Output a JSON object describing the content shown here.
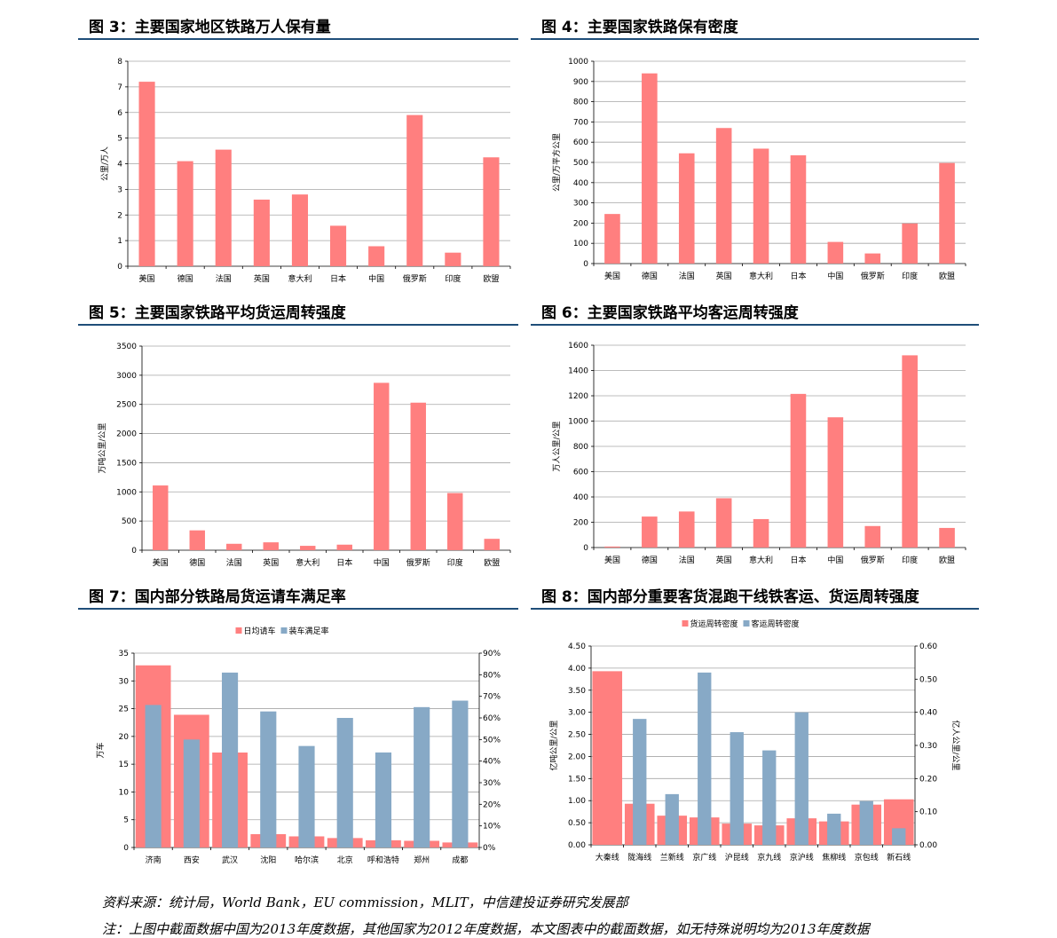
{
  "titles": {
    "fig3": "图 3：主要国家地区铁路万人保有量",
    "fig4": "图 4：主要国家铁路保有密度",
    "fig5": "图 5：主要国家铁路平均货运周转强度",
    "fig6": "图 6：主要国家铁路平均客运周转强度",
    "fig7": "图 7：国内部分铁路局货运请车满足率",
    "fig8": "图 8：国内部分重要客货混跑干线铁客运、货运周转强度"
  },
  "source": "资料来源：统计局，World Bank，EU commission，MLIT，中信建投证券研究发展部",
  "note": "注：上图中截面数据中国为2013年度数据，其他国家为2012年度数据，本文图表中的截面数据，如无特殊说明均为2013年度数据",
  "colors": {
    "red": "#ff7f7f",
    "blue": "#87a9c6",
    "grid": "#a6a6a6",
    "rule": "#1f4e79"
  },
  "chart_data": [
    {
      "id": "fig3",
      "type": "bar",
      "categories": [
        "美国",
        "德国",
        "法国",
        "英国",
        "意大利",
        "日本",
        "中国",
        "俄罗斯",
        "印度",
        "欧盟"
      ],
      "values": [
        7.2,
        4.1,
        4.55,
        2.6,
        2.8,
        1.58,
        0.78,
        5.9,
        0.53,
        4.25
      ],
      "ylabel": "公里/万人",
      "ylim": [
        0,
        8
      ],
      "yticks": [
        0,
        1,
        2,
        3,
        4,
        5,
        6,
        7,
        8
      ]
    },
    {
      "id": "fig4",
      "type": "bar",
      "categories": [
        "美国",
        "德国",
        "法国",
        "英国",
        "意大利",
        "日本",
        "中国",
        "俄罗斯",
        "印度",
        "欧盟"
      ],
      "values": [
        245,
        940,
        545,
        670,
        568,
        535,
        107,
        50,
        198,
        497
      ],
      "ylabel": "公里/万平方公里",
      "ylim": [
        0,
        1000
      ],
      "yticks": [
        0,
        100,
        200,
        300,
        400,
        500,
        600,
        700,
        800,
        900,
        1000
      ]
    },
    {
      "id": "fig5",
      "type": "bar",
      "categories": [
        "美国",
        "德国",
        "法国",
        "英国",
        "意大利",
        "日本",
        "中国",
        "俄罗斯",
        "印度",
        "欧盟"
      ],
      "values": [
        1110,
        340,
        110,
        135,
        75,
        95,
        2870,
        2530,
        980,
        195
      ],
      "ylabel": "万吨公里/公里",
      "ylim": [
        0,
        3500
      ],
      "yticks": [
        0,
        500,
        1000,
        1500,
        2000,
        2500,
        3000,
        3500
      ]
    },
    {
      "id": "fig6",
      "type": "bar",
      "categories": [
        "美国",
        "德国",
        "法国",
        "英国",
        "意大利",
        "日本",
        "中国",
        "俄罗斯",
        "印度",
        "欧盟"
      ],
      "values": [
        8,
        245,
        285,
        390,
        225,
        1215,
        1030,
        170,
        1520,
        155
      ],
      "ylabel": "万人公里/公里",
      "ylim": [
        0,
        1600
      ],
      "yticks": [
        0,
        200,
        400,
        600,
        800,
        1000,
        1200,
        1400,
        1600
      ]
    },
    {
      "id": "fig7",
      "type": "bar",
      "categories": [
        "济南",
        "西安",
        "武汉",
        "沈阳",
        "哈尔滨",
        "北京",
        "呼和浩特",
        "郑州",
        "成都"
      ],
      "series": [
        {
          "name": "日均请车",
          "axis": "left",
          "values": [
            32.8,
            23.9,
            17.1,
            2.4,
            2.0,
            1.7,
            1.3,
            1.2,
            0.9
          ]
        },
        {
          "name": "装车满足率",
          "axis": "right",
          "values": [
            0.66,
            0.5,
            0.81,
            0.63,
            0.47,
            0.6,
            0.44,
            0.65,
            0.68
          ]
        }
      ],
      "ylabel": "万车",
      "ylim": [
        0,
        35
      ],
      "yticks": [
        0,
        5,
        10,
        15,
        20,
        25,
        30,
        35
      ],
      "ylim_right": [
        0,
        0.9
      ],
      "yticks_right": [
        "0%",
        "10%",
        "20%",
        "30%",
        "40%",
        "50%",
        "60%",
        "70%",
        "80%",
        "90%"
      ],
      "legend": "top"
    },
    {
      "id": "fig8",
      "type": "bar",
      "categories": [
        "大秦线",
        "陇海线",
        "兰新线",
        "京广线",
        "沪昆线",
        "京九线",
        "京沪线",
        "焦柳线",
        "京包线",
        "新石线"
      ],
      "series": [
        {
          "name": "货运周转密度",
          "axis": "left",
          "values": [
            3.93,
            0.93,
            0.66,
            0.62,
            0.48,
            0.44,
            0.6,
            0.53,
            0.91,
            1.03
          ]
        },
        {
          "name": "客运周转密度",
          "axis": "right",
          "values": [
            0.0,
            0.38,
            0.153,
            0.52,
            0.34,
            0.285,
            0.4,
            0.094,
            0.132,
            0.05
          ]
        }
      ],
      "ylabel": "亿吨公里/公里",
      "ylim": [
        0,
        4.5
      ],
      "yticks": [
        "0.00",
        "0.50",
        "1.00",
        "1.50",
        "2.00",
        "2.50",
        "3.00",
        "3.50",
        "4.00",
        "4.50"
      ],
      "ylabel_right": "亿人公里/公里",
      "ylim_right": [
        0,
        0.6
      ],
      "yticks_right": [
        "0.00",
        "0.10",
        "0.20",
        "0.30",
        "0.40",
        "0.50",
        "0.60"
      ],
      "legend": "top"
    }
  ]
}
